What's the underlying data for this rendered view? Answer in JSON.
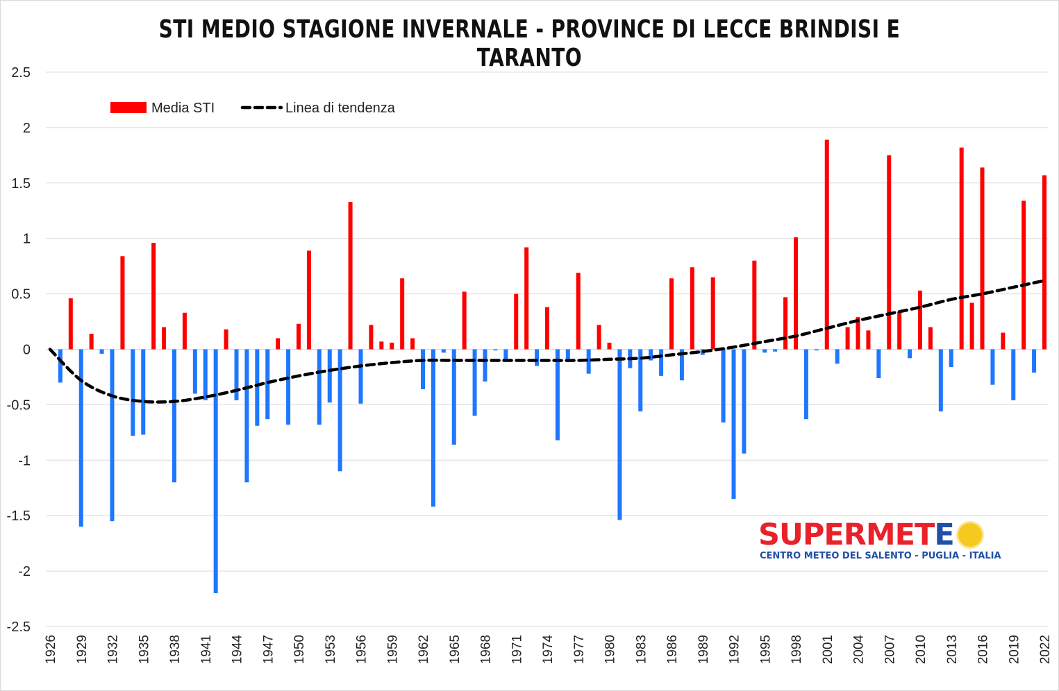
{
  "chart_data": {
    "type": "bar",
    "title": "STI MEDIO STAGIONE INVERNALE - PROVINCE DI LECCE BRINDISI E TARANTO",
    "xlabel": "",
    "ylabel": "",
    "ylim": [
      -2.5,
      2.5
    ],
    "yticks": [
      "2.5",
      "2",
      "1.5",
      "1",
      "0.5",
      "0",
      "-0.5",
      "-1",
      "-1.5",
      "-2",
      "-2.5"
    ],
    "ytick_values": [
      2.5,
      2,
      1.5,
      1,
      0.5,
      0,
      -0.5,
      -1,
      -1.5,
      -2,
      -2.5
    ],
    "grid": true,
    "legend_position": "top-left",
    "x_start_year": 1926,
    "x_end_year": 2022,
    "x_tick_step": 3,
    "xticks": [
      "1926",
      "1929",
      "1932",
      "1935",
      "1938",
      "1941",
      "1944",
      "1947",
      "1950",
      "1953",
      "1956",
      "1959",
      "1962",
      "1965",
      "1968",
      "1971",
      "1974",
      "1977",
      "1980",
      "1983",
      "1986",
      "1989",
      "1992",
      "1995",
      "1998",
      "2001",
      "2004",
      "2007",
      "2010",
      "2013",
      "2016",
      "2019",
      "2022"
    ],
    "colors": {
      "positive": "#ff0000",
      "negative": "#1f77ff",
      "trend": "#000000",
      "grid": "#d9d9d9"
    },
    "series": [
      {
        "name": "Media STI",
        "type": "bar",
        "x": [
          1927,
          1928,
          1929,
          1930,
          1931,
          1932,
          1933,
          1934,
          1935,
          1936,
          1937,
          1938,
          1939,
          1940,
          1941,
          1942,
          1943,
          1944,
          1945,
          1946,
          1947,
          1948,
          1949,
          1950,
          1951,
          1952,
          1953,
          1954,
          1955,
          1956,
          1957,
          1958,
          1959,
          1960,
          1961,
          1962,
          1963,
          1964,
          1965,
          1966,
          1967,
          1968,
          1969,
          1970,
          1971,
          1972,
          1973,
          1974,
          1975,
          1976,
          1977,
          1978,
          1979,
          1980,
          1981,
          1982,
          1983,
          1984,
          1985,
          1986,
          1987,
          1988,
          1989,
          1990,
          1991,
          1992,
          1993,
          1994,
          1995,
          1996,
          1997,
          1998,
          1999,
          2000,
          2001,
          2002,
          2003,
          2004,
          2005,
          2006,
          2007,
          2008,
          2009,
          2010,
          2011,
          2012,
          2013,
          2014,
          2015,
          2016,
          2017,
          2018,
          2019,
          2020,
          2021,
          2022
        ],
        "values": [
          -0.3,
          0.46,
          -1.6,
          0.14,
          -0.04,
          -1.55,
          0.84,
          -0.78,
          -0.77,
          0.96,
          0.2,
          -1.2,
          0.33,
          -0.4,
          -0.46,
          -2.2,
          0.18,
          -0.46,
          -1.2,
          -0.69,
          -0.63,
          0.1,
          -0.68,
          0.23,
          0.89,
          -0.68,
          -0.48,
          -1.1,
          1.33,
          -0.49,
          0.22,
          0.07,
          0.06,
          0.64,
          0.1,
          -0.36,
          -1.42,
          -0.03,
          -0.86,
          0.52,
          -0.6,
          -0.29,
          -0.01,
          -0.1,
          0.5,
          0.92,
          -0.15,
          0.38,
          -0.82,
          -0.09,
          0.69,
          -0.22,
          0.22,
          0.06,
          -1.54,
          -0.17,
          -0.56,
          -0.1,
          -0.24,
          0.64,
          -0.28,
          0.74,
          -0.05,
          0.65,
          -0.66,
          -1.35,
          -0.94,
          0.8,
          -0.03,
          -0.02,
          0.47,
          1.01,
          -0.63,
          -0.01,
          1.89,
          -0.13,
          0.2,
          0.29,
          0.17,
          -0.26,
          1.75,
          0.34,
          -0.08,
          0.53,
          0.2,
          -0.56,
          -0.16,
          1.82,
          0.42,
          1.64,
          -0.32,
          0.15,
          -0.46,
          1.34,
          -0.21,
          1.57
        ]
      },
      {
        "name": "Linea di tendenza",
        "type": "line",
        "style": "dashed",
        "x": [
          1926,
          1929,
          1932,
          1935,
          1938,
          1941,
          1944,
          1947,
          1950,
          1953,
          1956,
          1959,
          1962,
          1965,
          1968,
          1971,
          1974,
          1977,
          1980,
          1983,
          1986,
          1989,
          1992,
          1995,
          1998,
          2001,
          2004,
          2007,
          2010,
          2013,
          2016,
          2019,
          2022
        ],
        "values": [
          0.0,
          -0.28,
          -0.42,
          -0.47,
          -0.47,
          -0.43,
          -0.37,
          -0.3,
          -0.24,
          -0.19,
          -0.15,
          -0.12,
          -0.1,
          -0.1,
          -0.1,
          -0.1,
          -0.1,
          -0.1,
          -0.09,
          -0.08,
          -0.05,
          -0.02,
          0.02,
          0.07,
          0.12,
          0.19,
          0.26,
          0.32,
          0.38,
          0.45,
          0.5,
          0.56,
          0.62
        ]
      }
    ]
  },
  "logo": {
    "word_part1": "SUPERMET",
    "word_part2": "E",
    "subtitle": "CENTRO METEO DEL SALENTO - PUGLIA - ITALIA",
    "icon": "sun-icon"
  }
}
